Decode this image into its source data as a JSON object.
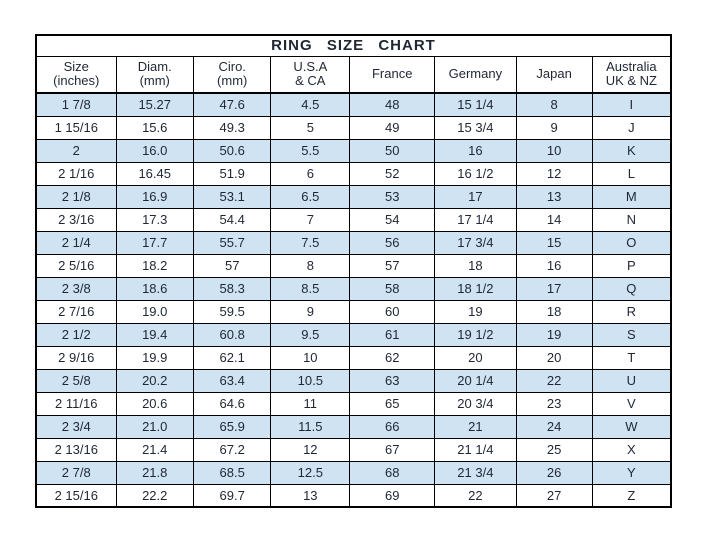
{
  "page": {
    "background_color": "#ffffff",
    "row_shade_color": "#cfe3f3",
    "border_color": "#000000",
    "text_color": "#1f2733"
  },
  "chart_data": {
    "type": "table",
    "title": "RING  SIZE  CHART",
    "layout": {
      "grid": true,
      "alternating_rows": true,
      "first_data_row_shaded": true
    },
    "columns": [
      {
        "label": "Size",
        "sub": "(inches)"
      },
      {
        "label": "Diam.",
        "sub": "(mm)"
      },
      {
        "label": "Ciro.",
        "sub": "(mm)"
      },
      {
        "label": "U.S.A",
        "sub": "& CA"
      },
      {
        "label": "France",
        "sub": ""
      },
      {
        "label": "Germany",
        "sub": ""
      },
      {
        "label": "Japan",
        "sub": ""
      },
      {
        "label": "Australia",
        "sub": "UK & NZ"
      }
    ],
    "rows": [
      [
        "1 7/8",
        "15.27",
        "47.6",
        "4.5",
        "48",
        "15 1/4",
        "8",
        "I"
      ],
      [
        "1 15/16",
        "15.6",
        "49.3",
        "5",
        "49",
        "15 3/4",
        "9",
        "J"
      ],
      [
        "2",
        "16.0",
        "50.6",
        "5.5",
        "50",
        "16",
        "10",
        "K"
      ],
      [
        "2 1/16",
        "16.45",
        "51.9",
        "6",
        "52",
        "16 1/2",
        "12",
        "L"
      ],
      [
        "2 1/8",
        "16.9",
        "53.1",
        "6.5",
        "53",
        "17",
        "13",
        "M"
      ],
      [
        "2 3/16",
        "17.3",
        "54.4",
        "7",
        "54",
        "17 1/4",
        "14",
        "N"
      ],
      [
        "2 1/4",
        "17.7",
        "55.7",
        "7.5",
        "56",
        "17 3/4",
        "15",
        "O"
      ],
      [
        "2 5/16",
        "18.2",
        "57",
        "8",
        "57",
        "18",
        "16",
        "P"
      ],
      [
        "2 3/8",
        "18.6",
        "58.3",
        "8.5",
        "58",
        "18 1/2",
        "17",
        "Q"
      ],
      [
        "2 7/16",
        "19.0",
        "59.5",
        "9",
        "60",
        "19",
        "18",
        "R"
      ],
      [
        "2 1/2",
        "19.4",
        "60.8",
        "9.5",
        "61",
        "19 1/2",
        "19",
        "S"
      ],
      [
        "2 9/16",
        "19.9",
        "62.1",
        "10",
        "62",
        "20",
        "20",
        "T"
      ],
      [
        "2 5/8",
        "20.2",
        "63.4",
        "10.5",
        "63",
        "20 1/4",
        "22",
        "U"
      ],
      [
        "2 11/16",
        "20.6",
        "64.6",
        "11",
        "65",
        "20 3/4",
        "23",
        "V"
      ],
      [
        "2 3/4",
        "21.0",
        "65.9",
        "11.5",
        "66",
        "21",
        "24",
        "W"
      ],
      [
        "2 13/16",
        "21.4",
        "67.2",
        "12",
        "67",
        "21 1/4",
        "25",
        "X"
      ],
      [
        "2 7/8",
        "21.8",
        "68.5",
        "12.5",
        "68",
        "21 3/4",
        "26",
        "Y"
      ],
      [
        "2 15/16",
        "22.2",
        "69.7",
        "13",
        "69",
        "22",
        "27",
        "Z"
      ]
    ]
  }
}
